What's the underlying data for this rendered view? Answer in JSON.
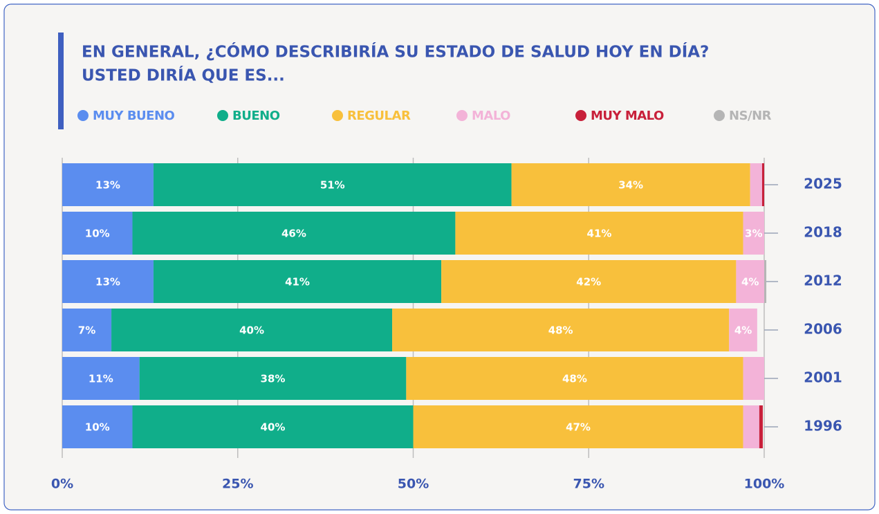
{
  "chart_data": {
    "type": "stacked_bar_horizontal",
    "title": [
      "EN GENERAL, ¿CÓMO DESCRIBIRÍA SU ESTADO DE SALUD HOY EN DÍA?",
      "USTED DIRÍA QUE ES..."
    ],
    "categories": [
      "2025",
      "2018",
      "2012",
      "2006",
      "2001",
      "1996"
    ],
    "series": [
      {
        "name": "MUY BUENO",
        "color": "#5b8def",
        "values": [
          13,
          10,
          13,
          7,
          11,
          10
        ],
        "value_labels": [
          "13%",
          "10%",
          "13%",
          "7%",
          "11%",
          "10%"
        ]
      },
      {
        "name": "BUENO",
        "color": "#10ae8a",
        "values": [
          51,
          46,
          41,
          40,
          38,
          40
        ],
        "value_labels": [
          "51%",
          "46%",
          "41%",
          "40%",
          "38%",
          "40%"
        ]
      },
      {
        "name": "REGULAR",
        "color": "#f8c03c",
        "values": [
          34,
          41,
          42,
          48,
          48,
          47
        ],
        "value_labels": [
          "34%",
          "41%",
          "42%",
          "48%",
          "48%",
          "47%"
        ]
      },
      {
        "name": "MALO",
        "color": "#f3b3d8",
        "values": [
          1.7,
          3,
          4,
          4,
          3,
          2.3
        ],
        "value_labels": [
          null,
          "3%",
          "4%",
          "4%",
          null,
          null
        ]
      },
      {
        "name": "MUY MALO",
        "color": "#c8203a",
        "values": [
          0.3,
          null,
          null,
          null,
          null,
          0.5
        ],
        "value_labels": [
          null,
          null,
          null,
          null,
          null,
          null
        ]
      },
      {
        "name": "NS/NR",
        "color": "#b5b5b5",
        "values": [
          null,
          null,
          0.3,
          null,
          null,
          null
        ],
        "value_labels": [
          null,
          null,
          null,
          null,
          null,
          null
        ]
      }
    ],
    "xlim": [
      0,
      100
    ],
    "xticks": [
      {
        "value": 0,
        "label": "0%"
      },
      {
        "value": 25,
        "label": "25%"
      },
      {
        "value": 50,
        "label": "50%"
      },
      {
        "value": 75,
        "label": "75%"
      },
      {
        "value": 100,
        "label": "100%"
      }
    ],
    "grid": true
  }
}
